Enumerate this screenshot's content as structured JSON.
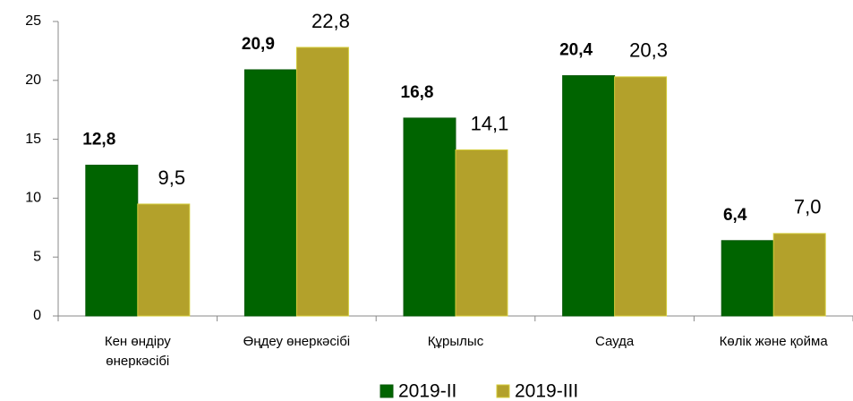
{
  "chart_data": {
    "type": "bar",
    "categories": [
      "Кен өндіру өнеркәсібі",
      "Өңдеу өнеркәсібі",
      "Құрылыс",
      "Сауда",
      "Көлік және қойма"
    ],
    "series": [
      {
        "name": "2019-II",
        "color": "#006400",
        "values": [
          12.8,
          20.9,
          16.8,
          20.4,
          6.4
        ],
        "value_labels": [
          "12,8",
          "20,9",
          "16,8",
          "20,4",
          "6,4"
        ]
      },
      {
        "name": "2019-III",
        "color": "#b3a12b",
        "values": [
          9.5,
          22.8,
          14.1,
          20.3,
          7.0
        ],
        "value_labels": [
          "9,5",
          "22,8",
          "14,1",
          "20,3",
          "7,0"
        ]
      }
    ],
    "ylim": [
      0,
      25
    ],
    "yticks": [
      0,
      5,
      10,
      15,
      20,
      25
    ],
    "legend": "bottom"
  }
}
